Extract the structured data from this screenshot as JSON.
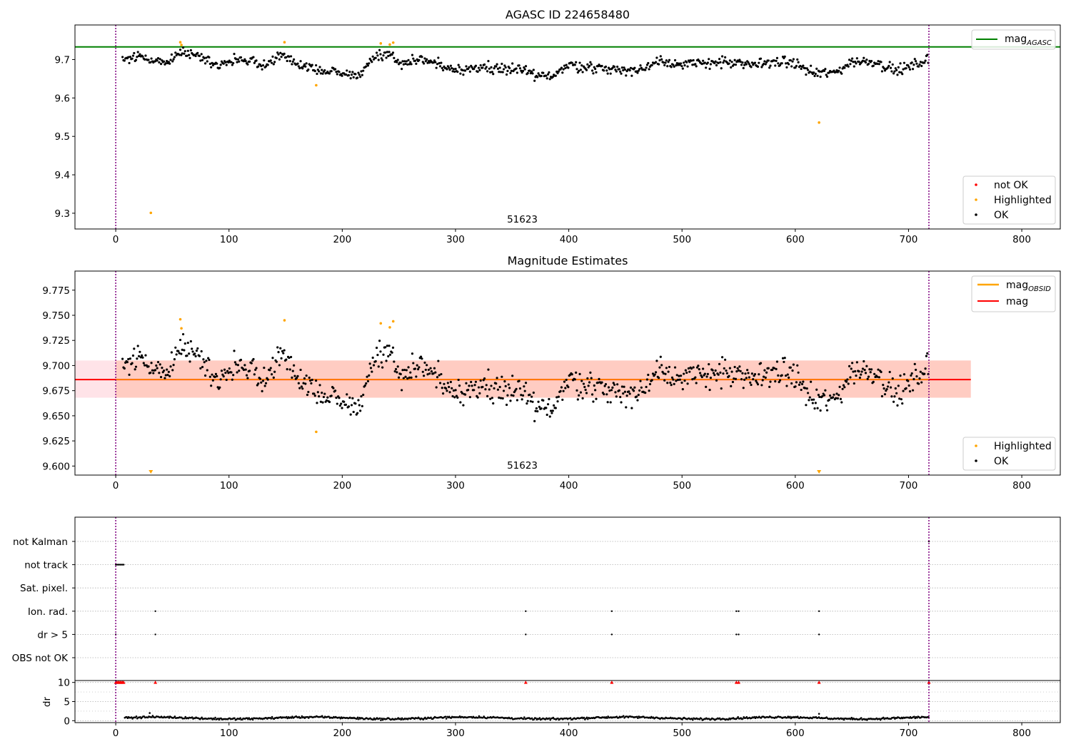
{
  "colors": {
    "ok": "#000000",
    "highlighted": "#ffa500",
    "not_ok": "#ff0000",
    "agasc_line": "#008000",
    "mag_line": "#ff0000",
    "mag_obsid_line": "#ffa500",
    "band_fill": "#ffc0cb",
    "band_obsid_fill": "#ffa07a",
    "obs_boundary": "#800080",
    "grid": "#b0b0b0"
  },
  "chart_data": [
    {
      "type": "scatter",
      "title": "AGASC ID 224658480",
      "xlabel": "",
      "ylabel": "",
      "xlim": [
        -36,
        834
      ],
      "ylim": [
        9.259,
        9.79
      ],
      "xticks": [
        0,
        100,
        200,
        300,
        400,
        500,
        600,
        700,
        800
      ],
      "yticks": [
        9.3,
        9.4,
        9.5,
        9.6,
        9.7
      ],
      "ytick_labels": [
        "9.3",
        "9.4",
        "9.5",
        "9.6",
        "9.7"
      ],
      "grid": false,
      "obs_boundaries": [
        0,
        718
      ],
      "obs_label": {
        "text": "51623",
        "x": 359
      },
      "hlines": [
        {
          "name": "mag_AGASC",
          "y": 9.733,
          "x_range": [
            -36,
            834
          ]
        }
      ],
      "highlighted_points": [
        [
          31,
          9.301
        ],
        [
          57,
          9.745
        ],
        [
          58,
          9.738
        ],
        [
          149,
          9.745
        ],
        [
          177,
          9.633
        ],
        [
          234,
          9.742
        ],
        [
          242,
          9.739
        ],
        [
          245,
          9.744
        ],
        [
          621,
          9.536
        ]
      ],
      "legends": [
        {
          "position": "top-right",
          "entries": [
            {
              "label": "mag",
              "sub": "AGASC",
              "kind": "line"
            }
          ]
        },
        {
          "position": "bottom-right",
          "entries": [
            {
              "label": "not OK",
              "kind": "dot-not-ok"
            },
            {
              "label": "Highlighted",
              "kind": "dot-highlighted"
            },
            {
              "label": "OK",
              "kind": "dot-ok"
            }
          ]
        }
      ]
    },
    {
      "type": "scatter",
      "title": "Magnitude Estimates",
      "xlabel": "",
      "ylabel": "",
      "xlim": [
        -36,
        834
      ],
      "ylim": [
        9.591,
        9.794
      ],
      "xticks": [
        0,
        100,
        200,
        300,
        400,
        500,
        600,
        700,
        800
      ],
      "yticks": [
        9.6,
        9.625,
        9.65,
        9.675,
        9.7,
        9.725,
        9.75,
        9.775
      ],
      "ytick_labels": [
        "9.600",
        "9.625",
        "9.650",
        "9.675",
        "9.700",
        "9.725",
        "9.750",
        "9.775"
      ],
      "grid": false,
      "obs_boundaries": [
        0,
        718
      ],
      "obs_label": {
        "text": "51623",
        "x": 359
      },
      "band": {
        "y_range": [
          9.668,
          9.705
        ],
        "x_range": [
          -36,
          755
        ]
      },
      "band_obsid": {
        "y_range": [
          9.668,
          9.705
        ],
        "x_range": [
          0,
          755
        ]
      },
      "hlines": [
        {
          "name": "mag",
          "y": 9.686,
          "x_range": [
            -36,
            755
          ]
        },
        {
          "name": "mag_OBSID",
          "y": 9.686,
          "x_range": [
            0,
            718
          ]
        }
      ],
      "highlighted_points": [
        [
          57,
          9.746
        ],
        [
          58,
          9.737
        ],
        [
          149,
          9.745
        ],
        [
          177,
          9.634
        ],
        [
          234,
          9.742
        ],
        [
          242,
          9.738
        ],
        [
          245,
          9.744
        ]
      ],
      "offscale_markers": [
        31,
        621
      ],
      "legends": [
        {
          "position": "top-right",
          "entries": [
            {
              "label": "mag",
              "sub": "OBSID",
              "kind": "line-obsid"
            },
            {
              "label": "mag",
              "sub": "",
              "kind": "line-mag"
            }
          ]
        },
        {
          "position": "bottom-right",
          "entries": [
            {
              "label": "Highlighted",
              "kind": "dot-highlighted"
            },
            {
              "label": "OK",
              "kind": "dot-ok"
            }
          ]
        }
      ]
    },
    {
      "type": "scatter",
      "title": "",
      "xlabel": "",
      "ylabel": "",
      "xlim": [
        -36,
        834
      ],
      "flag_rows": [
        "not Kalman",
        "not track",
        "Sat. pixel.",
        "Ion. rad.",
        "dr > 5",
        "OBS not OK"
      ],
      "flag_points": {
        "not track": [
          0,
          1,
          2,
          3,
          4,
          5,
          6,
          7
        ],
        "Ion. rad.": [
          35,
          362,
          438,
          548,
          550,
          621
        ],
        "dr > 5": [
          0,
          35,
          362,
          438,
          548,
          550,
          621
        ],
        "not Kalman": [
          718
        ]
      },
      "grid": true,
      "obs_boundaries": [
        0,
        718
      ]
    },
    {
      "type": "scatter",
      "title": "",
      "xlabel": "",
      "ylabel": "dr",
      "xlim": [
        -36,
        834
      ],
      "ylim": [
        -0.5,
        10.5
      ],
      "xticks": [
        0,
        100,
        200,
        300,
        400,
        500,
        600,
        700,
        800
      ],
      "yticks": [
        0,
        5,
        10
      ],
      "ytick_labels": [
        "0",
        "5",
        "10"
      ],
      "grid": true,
      "obs_boundaries": [
        0,
        718
      ],
      "clipped_markers": [
        0,
        1,
        2,
        3,
        4,
        5,
        6,
        7,
        35,
        362,
        438,
        548,
        550,
        621,
        718
      ],
      "dr_spikes": [
        [
          30,
          2.0
        ],
        [
          621,
          1.8
        ]
      ]
    }
  ]
}
